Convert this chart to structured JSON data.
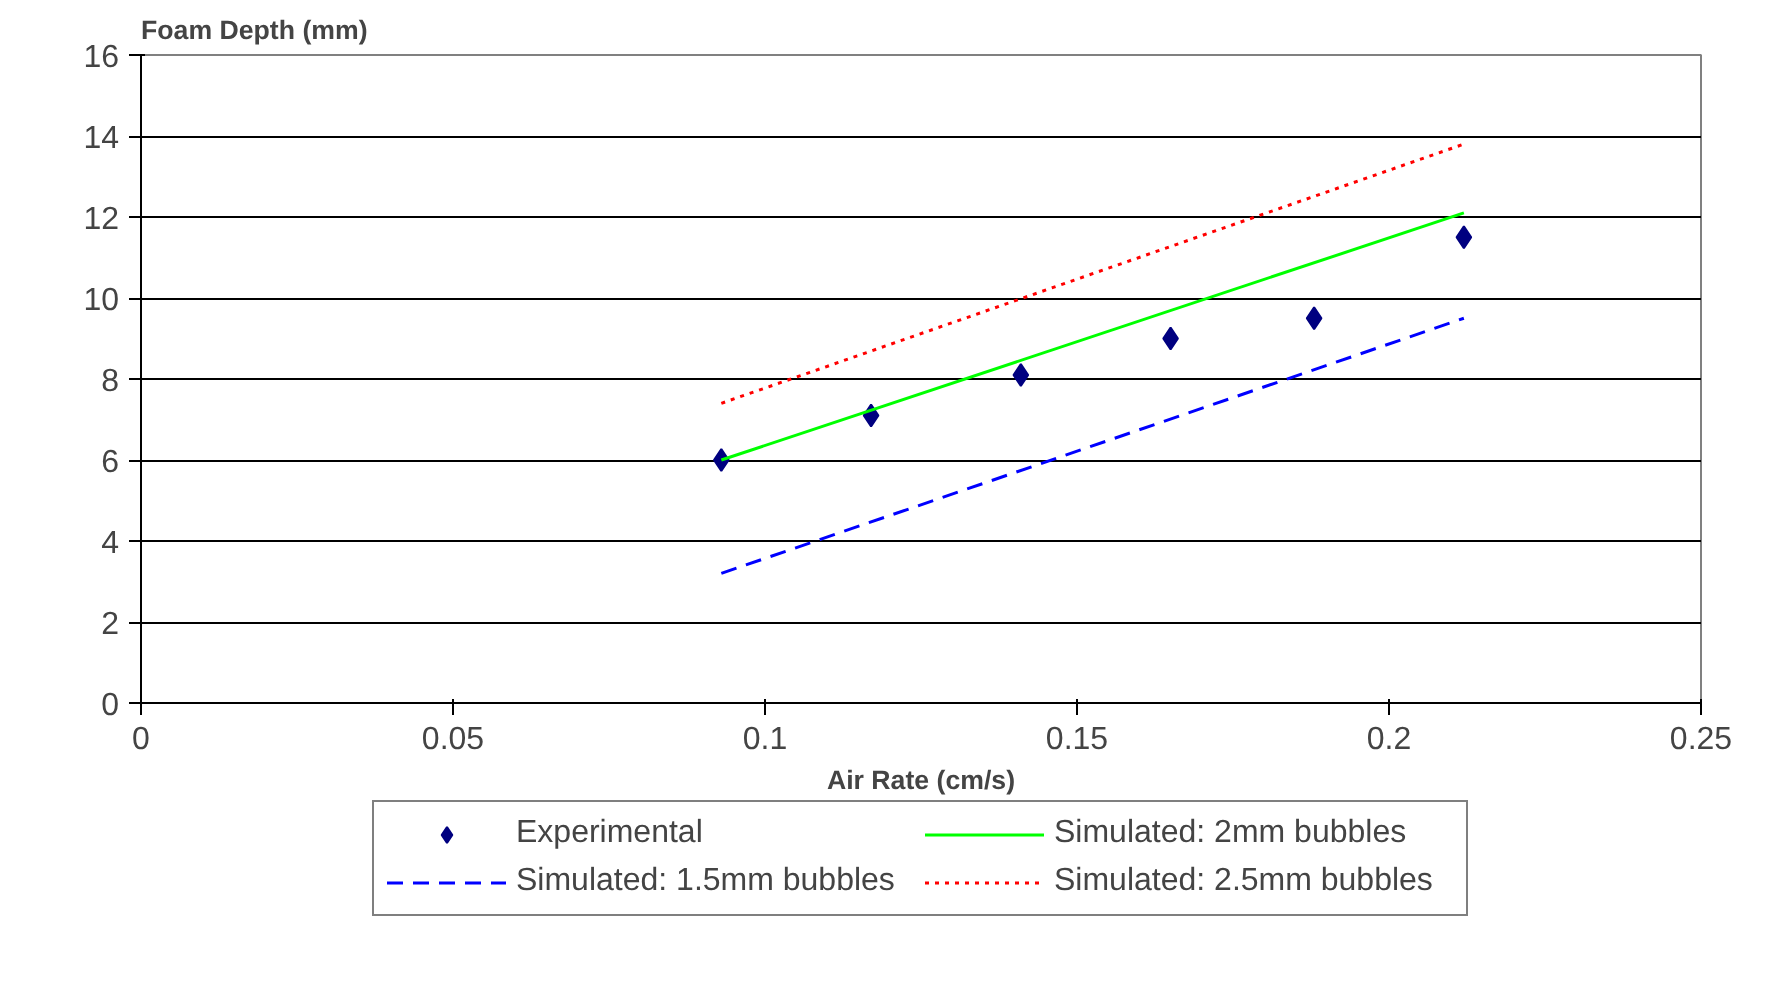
{
  "chart_data": {
    "type": "scatter",
    "ylabel": "Foam Depth (mm)",
    "xlabel": "Air Rate (cm/s)",
    "xlim": [
      0,
      0.25
    ],
    "xticks": [
      0,
      0.05,
      0.1,
      0.15,
      0.2,
      0.25
    ],
    "ylim": [
      0,
      16
    ],
    "yticks": [
      0,
      2,
      4,
      6,
      8,
      10,
      12,
      14,
      16
    ],
    "grid": "y",
    "legend": "bottom",
    "series": [
      {
        "name": "Experimental",
        "marker": "diamond",
        "color": "#000080",
        "x": [
          0.093,
          0.117,
          0.141,
          0.165,
          0.188,
          0.212
        ],
        "values": [
          6.0,
          7.1,
          8.1,
          9.0,
          9.5,
          11.5
        ]
      },
      {
        "name": "Simulated: 2mm bubbles",
        "type": "line",
        "line_style": "solid",
        "color": "#00ff00",
        "x": [
          0.093,
          0.212
        ],
        "values": [
          6.0,
          12.1
        ]
      },
      {
        "name": "Simulated: 1.5mm bubbles",
        "type": "line",
        "line_style": "dashed",
        "color": "#0000ff",
        "x": [
          0.093,
          0.212
        ],
        "values": [
          3.2,
          9.5
        ]
      },
      {
        "name": "Simulated: 2.5mm bubbles",
        "type": "line",
        "line_style": "dotted",
        "color": "#ff0000",
        "x": [
          0.093,
          0.212
        ],
        "values": [
          7.4,
          13.8
        ]
      }
    ]
  }
}
